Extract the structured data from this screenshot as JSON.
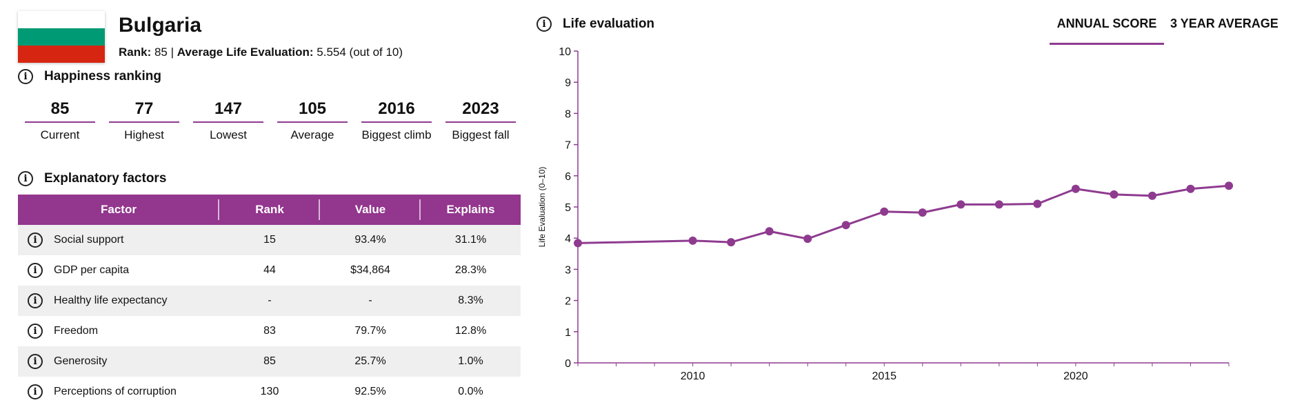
{
  "country": {
    "name": "Bulgaria",
    "flag_colors": [
      "#ffffff",
      "#009b74",
      "#d62612"
    ],
    "rank_label": "Rank:",
    "rank_value": "85",
    "separator": "|",
    "avg_label": "Average Life Evaluation:",
    "avg_value": "5.554 (out of 10)"
  },
  "happiness": {
    "title": "Happiness ranking",
    "items": [
      {
        "value": "85",
        "label": "Current"
      },
      {
        "value": "77",
        "label": "Highest"
      },
      {
        "value": "147",
        "label": "Lowest"
      },
      {
        "value": "105",
        "label": "Average"
      },
      {
        "value": "2016",
        "label": "Biggest climb"
      },
      {
        "value": "2023",
        "label": "Biggest fall"
      }
    ]
  },
  "factors": {
    "title": "Explanatory factors",
    "headers": [
      "Factor",
      "Rank",
      "Value",
      "Explains"
    ],
    "rows": [
      {
        "factor": "Social support",
        "rank": "15",
        "value": "93.4%",
        "explains": "31.1%"
      },
      {
        "factor": "GDP per capita",
        "rank": "44",
        "value": "$34,864",
        "explains": "28.3%"
      },
      {
        "factor": "Healthy life expectancy",
        "rank": "-",
        "value": "-",
        "explains": "8.3%"
      },
      {
        "factor": "Freedom",
        "rank": "83",
        "value": "79.7%",
        "explains": "12.8%"
      },
      {
        "factor": "Generosity",
        "rank": "85",
        "value": "25.7%",
        "explains": "1.0%"
      },
      {
        "factor": "Perceptions of corruption",
        "rank": "130",
        "value": "92.5%",
        "explains": "0.0%"
      }
    ]
  },
  "chart_panel": {
    "title": "Life evaluation",
    "tabs": [
      {
        "label": "ANNUAL SCORE",
        "active": true
      },
      {
        "label": "3 YEAR AVERAGE",
        "active": false
      }
    ]
  },
  "colors": {
    "accent": "#93368e",
    "line": "#8e3b8f"
  },
  "chart_data": {
    "type": "line",
    "ylabel": "Life Evaluation (0–10)",
    "xlabel": "",
    "ylim": [
      0,
      10
    ],
    "xlim": [
      2007,
      2024
    ],
    "yticks": [
      "0",
      "1",
      "2",
      "3",
      "4",
      "5",
      "6",
      "7",
      "8",
      "9",
      "10"
    ],
    "xticks": [
      "2010",
      "2015",
      "2020"
    ],
    "grid": false,
    "series": [
      {
        "x": [
          2007,
          2010,
          2011,
          2012,
          2013,
          2014,
          2015,
          2016,
          2017,
          2018,
          2019,
          2020,
          2021,
          2022,
          2023,
          2024
        ],
        "values": [
          3.84,
          3.92,
          3.87,
          4.22,
          3.98,
          4.42,
          4.85,
          4.82,
          5.08,
          5.08,
          5.1,
          5.58,
          5.4,
          5.36,
          5.58,
          5.68
        ]
      }
    ]
  }
}
